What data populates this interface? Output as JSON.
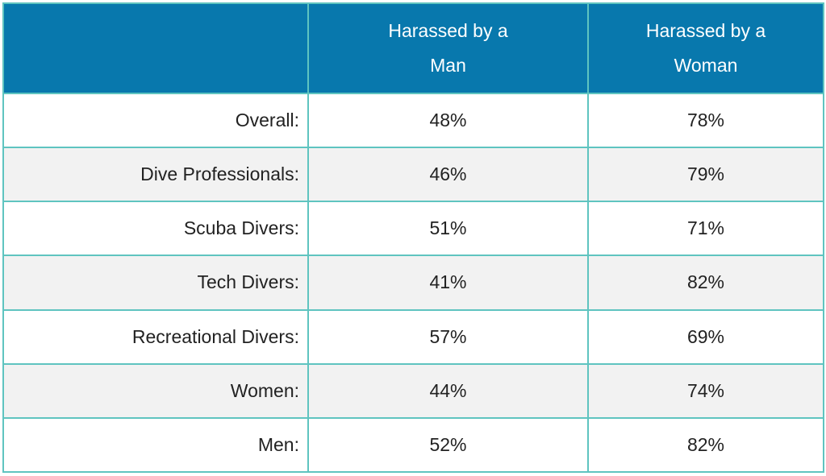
{
  "chart_data": {
    "type": "table",
    "columns": [
      "",
      "Harassed by a Man",
      "Harassed by a Woman"
    ],
    "header_lines": [
      [],
      [
        "Harassed by a",
        "Man"
      ],
      [
        "Harassed by a",
        "Woman"
      ]
    ],
    "rows": [
      {
        "label": "Overall:",
        "values": [
          "48%",
          "78%"
        ]
      },
      {
        "label": "Dive Professionals:",
        "values": [
          "46%",
          "79%"
        ]
      },
      {
        "label": "Scuba Divers:",
        "values": [
          "51%",
          "71%"
        ]
      },
      {
        "label": "Tech Divers:",
        "values": [
          "41%",
          "82%"
        ]
      },
      {
        "label": "Recreational Divers:",
        "values": [
          "57%",
          "69%"
        ]
      },
      {
        "label": "Women:",
        "values": [
          "44%",
          "74%"
        ]
      },
      {
        "label": "Men:",
        "values": [
          "52%",
          "82%"
        ]
      }
    ]
  },
  "colors": {
    "header_bg": "#0878ad",
    "header_text": "#ffffff",
    "border": "#5fc4c0",
    "row_alt_bg": "#f2f2f2"
  }
}
